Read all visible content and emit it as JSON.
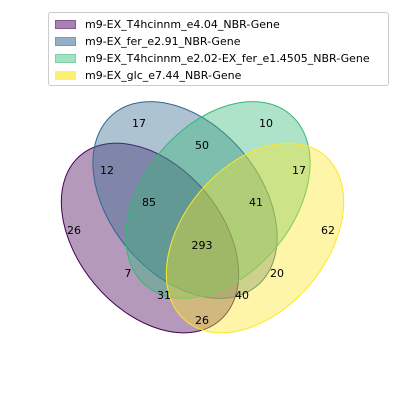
{
  "legend": {
    "items": [
      {
        "label": "m9-EX_T4hcinnm_e4.04_NBR-Gene",
        "fill": "#7b3f8a",
        "edge": "#440154"
      },
      {
        "label": "m9-EX_fer_e2.91_NBR-Gene",
        "fill": "#5e86a8",
        "edge": "#31688e"
      },
      {
        "label": "m9-EX_T4hcinnm_e2.02-EX_fer_e1.4505_NBR-Gene",
        "fill": "#6ed4a4",
        "edge": "#35b779"
      },
      {
        "label": "m9-EX_glc_e7.44_NBR-Gene",
        "fill": "#fde725",
        "edge": "#fde725"
      }
    ]
  },
  "venn": {
    "sets": [
      {
        "color": "#440154"
      },
      {
        "color": "#31688e"
      },
      {
        "color": "#35b779"
      },
      {
        "color": "#fde725"
      }
    ],
    "regions": [
      {
        "name": "A-only",
        "value": "26"
      },
      {
        "name": "B-only",
        "value": "17"
      },
      {
        "name": "C-only",
        "value": "10"
      },
      {
        "name": "D-only",
        "value": "62"
      },
      {
        "name": "AB",
        "value": "12"
      },
      {
        "name": "BC",
        "value": "50"
      },
      {
        "name": "CD",
        "value": "17"
      },
      {
        "name": "ABC",
        "value": "85"
      },
      {
        "name": "BCD",
        "value": "41"
      },
      {
        "name": "ABCD",
        "value": "293"
      },
      {
        "name": "AC",
        "value": "7"
      },
      {
        "name": "BD",
        "value": "20"
      },
      {
        "name": "ACD",
        "value": "31"
      },
      {
        "name": "ABD",
        "value": "40"
      },
      {
        "name": "AD",
        "value": "26"
      }
    ]
  }
}
